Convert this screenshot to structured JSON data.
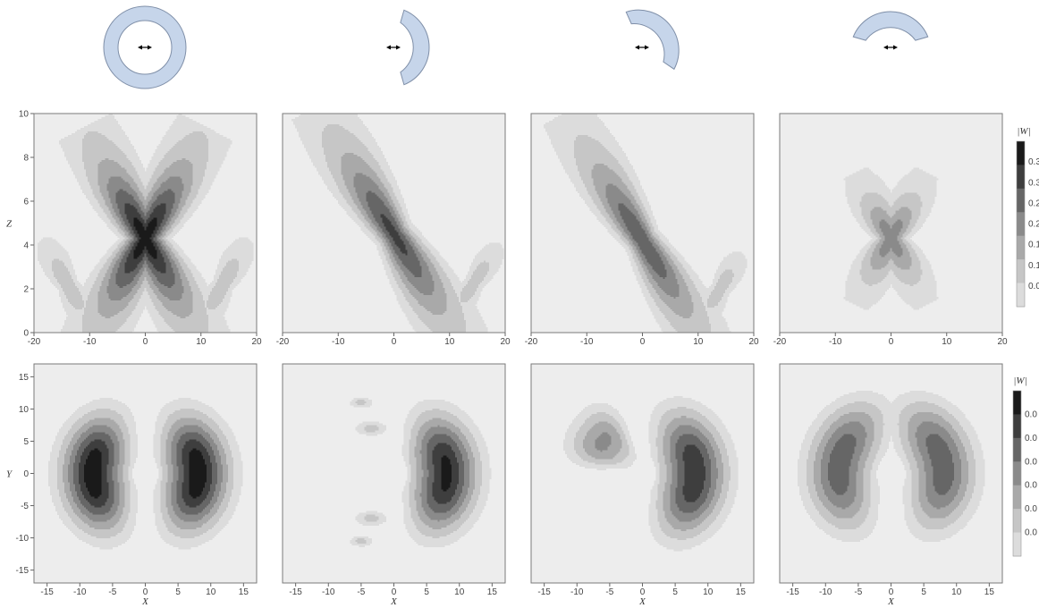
{
  "colorbar_label": "|W|",
  "colors": {
    "background": "#ededed",
    "shape_fill": "#c6d5ea",
    "shape_stroke": "#7f8fa8",
    "contour_levels": [
      "#dcdcdc",
      "#c6c6c6",
      "#a9a9a9",
      "#8a8a8a",
      "#666666",
      "#3e3e3e",
      "#1a1a1a"
    ]
  },
  "shapes": [
    {
      "kind": "ring",
      "arrow_icon": "double-arrow-icon"
    },
    {
      "kind": "crescent-right",
      "arrow_icon": "double-arrow-icon"
    },
    {
      "kind": "crescent-upper-right",
      "arrow_icon": "double-arrow-icon"
    },
    {
      "kind": "crescent-top",
      "arrow_icon": "double-arrow-icon"
    }
  ],
  "chart_data": [
    {
      "type": "heatmap",
      "row": "top",
      "xlabel": "",
      "ylabel": "Z",
      "xlim": [
        -20,
        20
      ],
      "ylim": [
        0,
        10
      ],
      "xticks": [
        "-20",
        "-10",
        "0",
        "10",
        "20"
      ],
      "yticks": [
        "0",
        "2",
        "4",
        "6",
        "8",
        "10"
      ],
      "colorbar_ticks": [
        "0.3",
        "0.3",
        "0.2",
        "0.2",
        "0.1",
        "0.1",
        "0.0"
      ],
      "panels": [
        {
          "lobes": [
            {
              "x": 0,
              "z": 4.3,
              "len": 22,
              "angle": 62,
              "w": 1.6,
              "amp": 1.0
            },
            {
              "x": 0,
              "z": 4.3,
              "len": 22,
              "angle": 118,
              "w": 1.6,
              "amp": 1.0
            },
            {
              "x": 14,
              "z": 2.2,
              "len": 12,
              "angle": 62,
              "w": 1.2,
              "amp": 0.35
            },
            {
              "x": -14,
              "z": 2.2,
              "len": 12,
              "angle": 118,
              "w": 1.2,
              "amp": 0.35
            }
          ]
        },
        {
          "lobes": [
            {
              "x": 0,
              "z": 4.5,
              "len": 26,
              "angle": 121,
              "w": 1.7,
              "amp": 0.85
            },
            {
              "x": 14.5,
              "z": 2.3,
              "len": 11,
              "angle": 58,
              "w": 1.1,
              "amp": 0.33
            }
          ]
        },
        {
          "lobes": [
            {
              "x": 0,
              "z": 4.2,
              "len": 26,
              "angle": 121,
              "w": 1.6,
              "amp": 0.8
            },
            {
              "x": 14,
              "z": 2.0,
              "len": 10,
              "angle": 60,
              "w": 1.1,
              "amp": 0.33
            }
          ]
        },
        {
          "lobes": [
            {
              "x": 0,
              "z": 4.3,
              "len": 13,
              "angle": 62,
              "w": 1.3,
              "amp": 0.62
            },
            {
              "x": 0,
              "z": 4.3,
              "len": 13,
              "angle": 118,
              "w": 1.3,
              "amp": 0.62
            }
          ]
        }
      ]
    },
    {
      "type": "heatmap",
      "row": "bottom",
      "xlabel": "X",
      "ylabel": "Y",
      "xlim": [
        -17,
        17
      ],
      "ylim": [
        -17,
        17
      ],
      "xticks": [
        "-15",
        "-10",
        "-5",
        "0",
        "5",
        "10",
        "15"
      ],
      "yticks": [
        "-15",
        "-10",
        "-5",
        "0",
        "5",
        "10",
        "15"
      ],
      "colorbar_ticks": [
        "0.0",
        "0.0",
        "0.0",
        "0.0",
        "0.0",
        "0.0"
      ],
      "panels": [
        {
          "arcs": [
            {
              "r": 9,
              "a0": -58,
              "a1": 58,
              "amp": 1.0,
              "dir": 1
            },
            {
              "r": 9,
              "a0": 122,
              "a1": 238,
              "amp": 1.0,
              "dir": -1
            }
          ],
          "blobs": []
        },
        {
          "arcs": [
            {
              "r": 9,
              "a0": -58,
              "a1": 58,
              "amp": 0.95,
              "dir": 1
            }
          ],
          "blobs": [
            {
              "x": -5,
              "y": 11,
              "rx": 1.2,
              "ry": 0.6,
              "amp": 0.3
            },
            {
              "x": -3.5,
              "y": 7,
              "rx": 1.7,
              "ry": 0.8,
              "amp": 0.3
            },
            {
              "x": -3.5,
              "y": -7,
              "rx": 1.7,
              "ry": 0.8,
              "amp": 0.3
            },
            {
              "x": -5,
              "y": -10.5,
              "rx": 1.2,
              "ry": 0.6,
              "amp": 0.3
            }
          ]
        },
        {
          "arcs": [
            {
              "r": 9,
              "a0": -62,
              "a1": 62,
              "amp": 0.9,
              "dir": 1
            },
            {
              "r": 8.5,
              "a0": 118,
              "a1": 172,
              "amp": 0.55,
              "dir": -1
            }
          ],
          "blobs": []
        },
        {
          "arcs": [
            {
              "r": 9,
              "a0": -55,
              "a1": 75,
              "amp": 0.75,
              "dir": 1
            },
            {
              "r": 9,
              "a0": 105,
              "a1": 235,
              "amp": 0.75,
              "dir": -1
            }
          ],
          "blobs": []
        }
      ]
    }
  ]
}
